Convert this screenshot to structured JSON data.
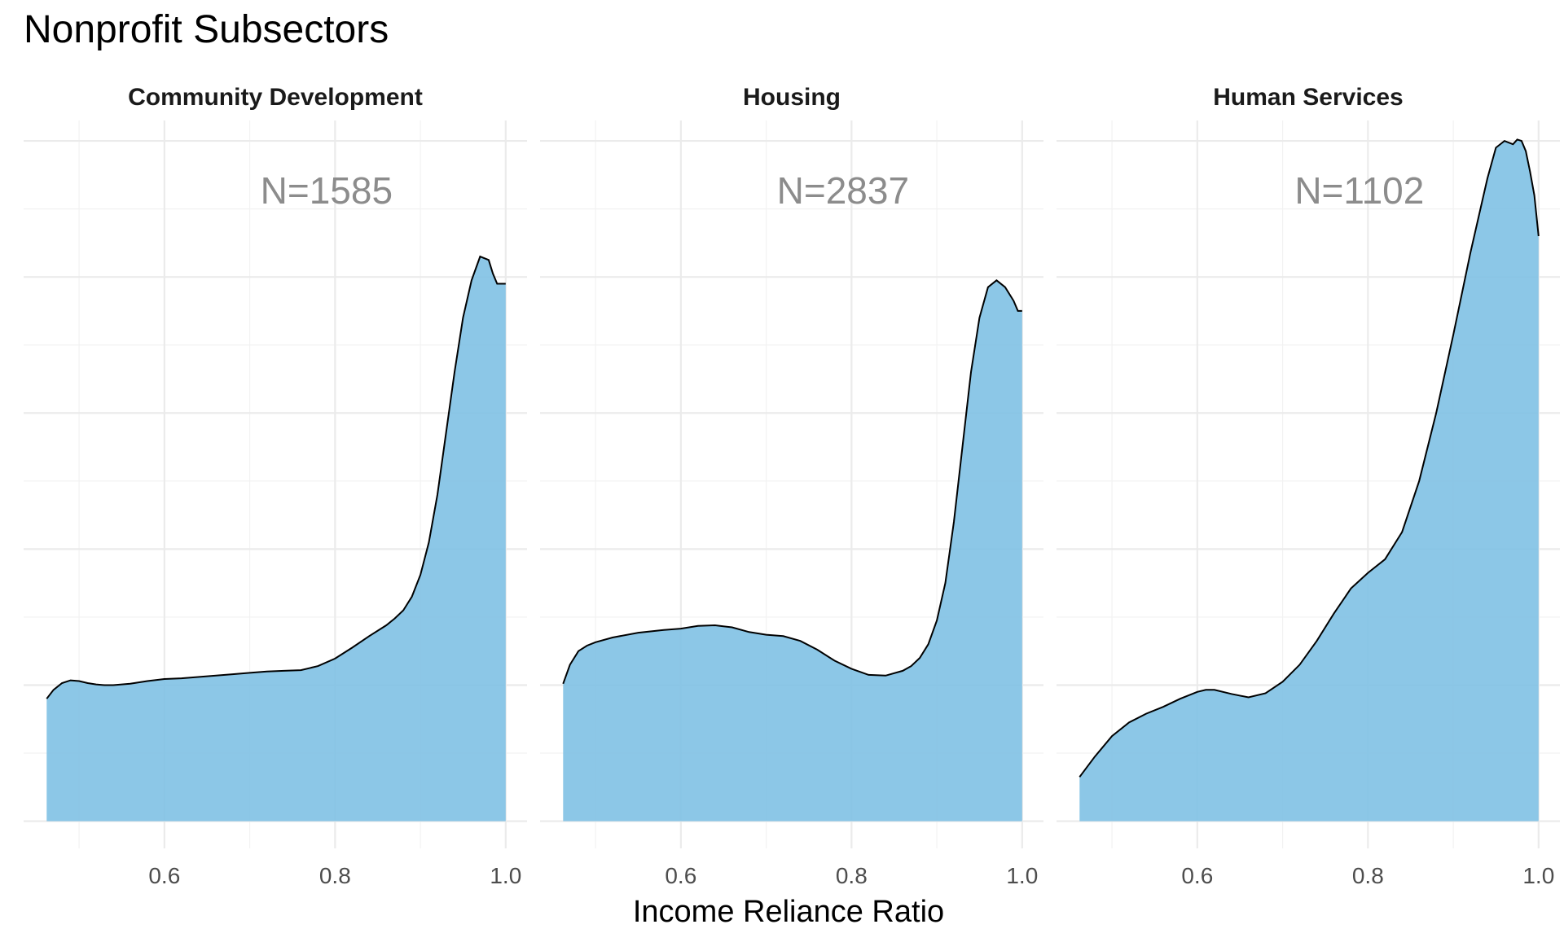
{
  "chart_data": {
    "type": "area",
    "title": "Nonprofit Subsectors",
    "xlabel": "Income Reliance Ratio",
    "ylabel": "",
    "xlim": [
      0.435,
      1.025
    ],
    "ylim": [
      -0.4,
      10.3
    ],
    "x_ticks": [
      0.6,
      0.8,
      1.0
    ],
    "x_tick_labels": [
      "0.6",
      "0.8",
      "1.0"
    ],
    "x_minor_breaks": [
      0.5,
      0.7,
      0.9
    ],
    "y_major_breaks": [
      0,
      2,
      4,
      6,
      8,
      10
    ],
    "y_minor_breaks": [
      1,
      3,
      5,
      7,
      9
    ],
    "grid": true,
    "fill_color": "#7fc1e4",
    "line_color": "#000000",
    "facets": [
      {
        "label": "Community Development",
        "annotation": "N=1585",
        "x": [
          0.462,
          0.47,
          0.48,
          0.49,
          0.5,
          0.51,
          0.52,
          0.53,
          0.54,
          0.56,
          0.58,
          0.6,
          0.62,
          0.65,
          0.68,
          0.7,
          0.72,
          0.74,
          0.76,
          0.78,
          0.8,
          0.82,
          0.84,
          0.86,
          0.87,
          0.88,
          0.89,
          0.9,
          0.91,
          0.92,
          0.93,
          0.94,
          0.95,
          0.96,
          0.97,
          0.98,
          0.985,
          0.99,
          0.995,
          1.0
        ],
        "y": [
          1.8,
          1.93,
          2.03,
          2.07,
          2.06,
          2.03,
          2.01,
          2.0,
          2.0,
          2.02,
          2.06,
          2.09,
          2.1,
          2.13,
          2.16,
          2.18,
          2.2,
          2.21,
          2.22,
          2.28,
          2.39,
          2.55,
          2.72,
          2.88,
          2.98,
          3.1,
          3.3,
          3.62,
          4.1,
          4.8,
          5.7,
          6.6,
          7.4,
          7.95,
          8.3,
          8.25,
          8.05,
          7.9,
          7.9,
          7.9
        ]
      },
      {
        "label": "Housing",
        "annotation": "N=2837",
        "x": [
          0.462,
          0.47,
          0.48,
          0.49,
          0.5,
          0.52,
          0.55,
          0.58,
          0.6,
          0.62,
          0.64,
          0.66,
          0.68,
          0.7,
          0.72,
          0.74,
          0.76,
          0.78,
          0.8,
          0.82,
          0.84,
          0.86,
          0.87,
          0.88,
          0.89,
          0.9,
          0.91,
          0.92,
          0.93,
          0.94,
          0.95,
          0.96,
          0.97,
          0.98,
          0.99,
          0.995,
          1.0
        ],
        "y": [
          2.02,
          2.3,
          2.5,
          2.58,
          2.63,
          2.7,
          2.77,
          2.81,
          2.83,
          2.87,
          2.88,
          2.85,
          2.78,
          2.74,
          2.72,
          2.65,
          2.52,
          2.36,
          2.24,
          2.15,
          2.14,
          2.21,
          2.28,
          2.4,
          2.6,
          2.95,
          3.5,
          4.4,
          5.5,
          6.6,
          7.4,
          7.85,
          7.95,
          7.85,
          7.65,
          7.5,
          7.5
        ]
      },
      {
        "label": "Human Services",
        "annotation": "N=1102",
        "x": [
          0.462,
          0.48,
          0.5,
          0.52,
          0.54,
          0.56,
          0.58,
          0.6,
          0.61,
          0.62,
          0.64,
          0.66,
          0.68,
          0.7,
          0.72,
          0.74,
          0.76,
          0.78,
          0.8,
          0.82,
          0.84,
          0.86,
          0.88,
          0.9,
          0.92,
          0.94,
          0.95,
          0.96,
          0.97,
          0.975,
          0.98,
          0.985,
          0.99,
          0.995,
          1.0
        ],
        "y": [
          0.65,
          0.95,
          1.25,
          1.45,
          1.58,
          1.68,
          1.8,
          1.9,
          1.93,
          1.93,
          1.87,
          1.82,
          1.88,
          2.05,
          2.3,
          2.65,
          3.05,
          3.42,
          3.65,
          3.85,
          4.25,
          5.0,
          6.0,
          7.15,
          8.35,
          9.45,
          9.9,
          10.0,
          9.95,
          10.02,
          10.0,
          9.85,
          9.55,
          9.2,
          8.6
        ]
      }
    ]
  }
}
